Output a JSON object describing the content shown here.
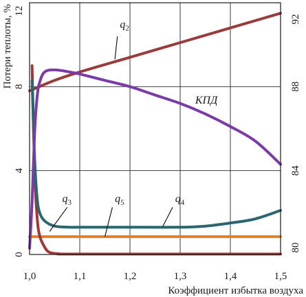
{
  "chart_data": {
    "type": "line",
    "xlabel": "Коэффициент избытка воздуха",
    "ylabel": "Потери теплоты, %",
    "xlim": [
      1.0,
      1.5
    ],
    "ylim": [
      0,
      12
    ],
    "y2lim": [
      80,
      92
    ],
    "x_ticks": [
      "1,0",
      "1,1",
      "1,2",
      "1,3",
      "1,4",
      "1,5"
    ],
    "y_ticks": [
      "0",
      "4",
      "8",
      "12"
    ],
    "y2_ticks": [
      "80",
      "84",
      "88",
      "92"
    ],
    "grid": true,
    "colors": {
      "q2": "#9a3b3b",
      "kpd": "#7a3aa8",
      "q4": "#2a6670",
      "q5": "#e8801e",
      "q3": "#a33636"
    },
    "series": [
      {
        "name": "q2",
        "axis": "left",
        "x": [
          1.0,
          1.05,
          1.1,
          1.2,
          1.3,
          1.4,
          1.5
        ],
        "y": [
          7.8,
          8.3,
          8.7,
          9.4,
          10.1,
          10.8,
          11.5
        ]
      },
      {
        "name": "КПД",
        "axis": "right",
        "x": [
          1.0,
          1.005,
          1.01,
          1.015,
          1.02,
          1.03,
          1.05,
          1.08,
          1.1,
          1.15,
          1.2,
          1.25,
          1.3,
          1.35,
          1.4,
          1.45,
          1.5
        ],
        "y": [
          80.3,
          82.5,
          85.8,
          87.5,
          88.2,
          88.7,
          88.8,
          88.7,
          88.6,
          88.3,
          88.0,
          87.6,
          87.2,
          86.7,
          86.1,
          85.4,
          84.3
        ]
      },
      {
        "name": "q4",
        "axis": "left",
        "x": [
          1.005,
          1.01,
          1.015,
          1.02,
          1.03,
          1.05,
          1.08,
          1.1,
          1.2,
          1.3,
          1.35,
          1.4,
          1.45,
          1.5
        ],
        "y": [
          8.3,
          4.6,
          2.7,
          2.0,
          1.6,
          1.35,
          1.3,
          1.3,
          1.3,
          1.3,
          1.35,
          1.5,
          1.7,
          2.1
        ]
      },
      {
        "name": "q5",
        "axis": "left",
        "x": [
          1.0,
          1.1,
          1.2,
          1.3,
          1.4,
          1.5
        ],
        "y": [
          0.85,
          0.85,
          0.85,
          0.85,
          0.85,
          0.85
        ]
      },
      {
        "name": "q3",
        "axis": "left",
        "x": [
          1.005,
          1.01,
          1.015,
          1.02,
          1.03,
          1.04,
          1.06,
          1.1,
          1.5
        ],
        "y": [
          9.0,
          4.0,
          1.8,
          0.9,
          0.35,
          0.1,
          0.03,
          0.02,
          0.02
        ]
      }
    ],
    "annotations": [
      {
        "series": "q2",
        "letter": "q",
        "sub": "2",
        "x": 1.18,
        "y": 10.8,
        "leader": [
          [
            1.175,
            10.4
          ],
          [
            1.17,
            9.3
          ]
        ]
      },
      {
        "series": "КПД",
        "letter": "КПД",
        "sub": "",
        "x": 1.33,
        "y": 7.2,
        "leader": []
      },
      {
        "series": "q3",
        "letter": "q",
        "sub": "3",
        "x": 1.065,
        "y": 2.5,
        "leader": [
          [
            1.075,
            2.25
          ],
          [
            1.04,
            1.1
          ]
        ]
      },
      {
        "series": "q5",
        "letter": "q",
        "sub": "5",
        "x": 1.17,
        "y": 2.5,
        "leader": [
          [
            1.165,
            2.25
          ],
          [
            1.15,
            0.85
          ]
        ]
      },
      {
        "series": "q4",
        "letter": "q",
        "sub": "4",
        "x": 1.29,
        "y": 2.5,
        "leader": [
          [
            1.285,
            2.25
          ],
          [
            1.265,
            1.32
          ]
        ]
      }
    ]
  }
}
